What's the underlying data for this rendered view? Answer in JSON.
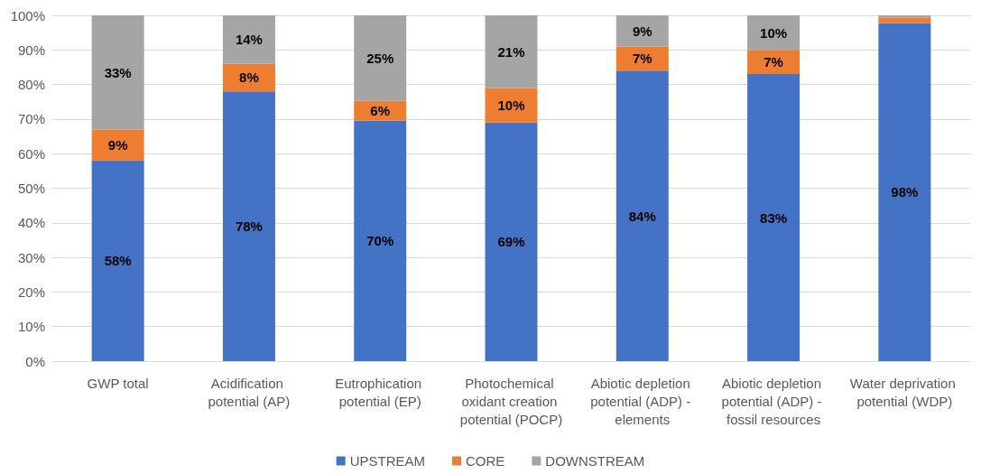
{
  "chart_data": {
    "type": "bar",
    "stacked": true,
    "categories": [
      "GWP total",
      "Acidification potential (AP)",
      "Eutrophication potential (EP)",
      "Photochemical oxidant creation potential (POCP)",
      "Abiotic depletion potential (ADP) - elements",
      "Abiotic depletion potential (ADP) - fossil resources",
      "Water deprivation potential (WDP)"
    ],
    "series": [
      {
        "name": "UPSTREAM",
        "color": "#4472c4",
        "values": [
          58,
          78,
          69.6,
          69,
          84,
          83,
          97.8
        ],
        "value_labels": [
          "58%",
          "78%",
          "70%",
          "69%",
          "84%",
          "83%",
          "98%"
        ]
      },
      {
        "name": "CORE",
        "color": "#ed7d31",
        "values": [
          9,
          8,
          5.7,
          10,
          7,
          7,
          1.6
        ],
        "value_labels": [
          "9%",
          "8%",
          "6%",
          "10%",
          "7%",
          "7%",
          null
        ]
      },
      {
        "name": "DOWNSTREAM",
        "color": "#a5a5a5",
        "values": [
          33,
          14,
          24.7,
          21,
          9,
          10,
          0.6
        ],
        "value_labels": [
          "33%",
          "14%",
          "25%",
          "21%",
          "9%",
          "10%",
          null
        ]
      }
    ],
    "ylim": [
      0,
      100
    ],
    "yticks": [
      {
        "value": 0,
        "label": "0%"
      },
      {
        "value": 10,
        "label": "10%"
      },
      {
        "value": 20,
        "label": "20%"
      },
      {
        "value": 30,
        "label": "30%"
      },
      {
        "value": 40,
        "label": "40%"
      },
      {
        "value": 50,
        "label": "50%"
      },
      {
        "value": 60,
        "label": "60%"
      },
      {
        "value": 70,
        "label": "70%"
      },
      {
        "value": 80,
        "label": "80%"
      },
      {
        "value": 90,
        "label": "90%"
      },
      {
        "value": 100,
        "label": "100%"
      }
    ],
    "grid": "y",
    "legend": "bottom"
  }
}
